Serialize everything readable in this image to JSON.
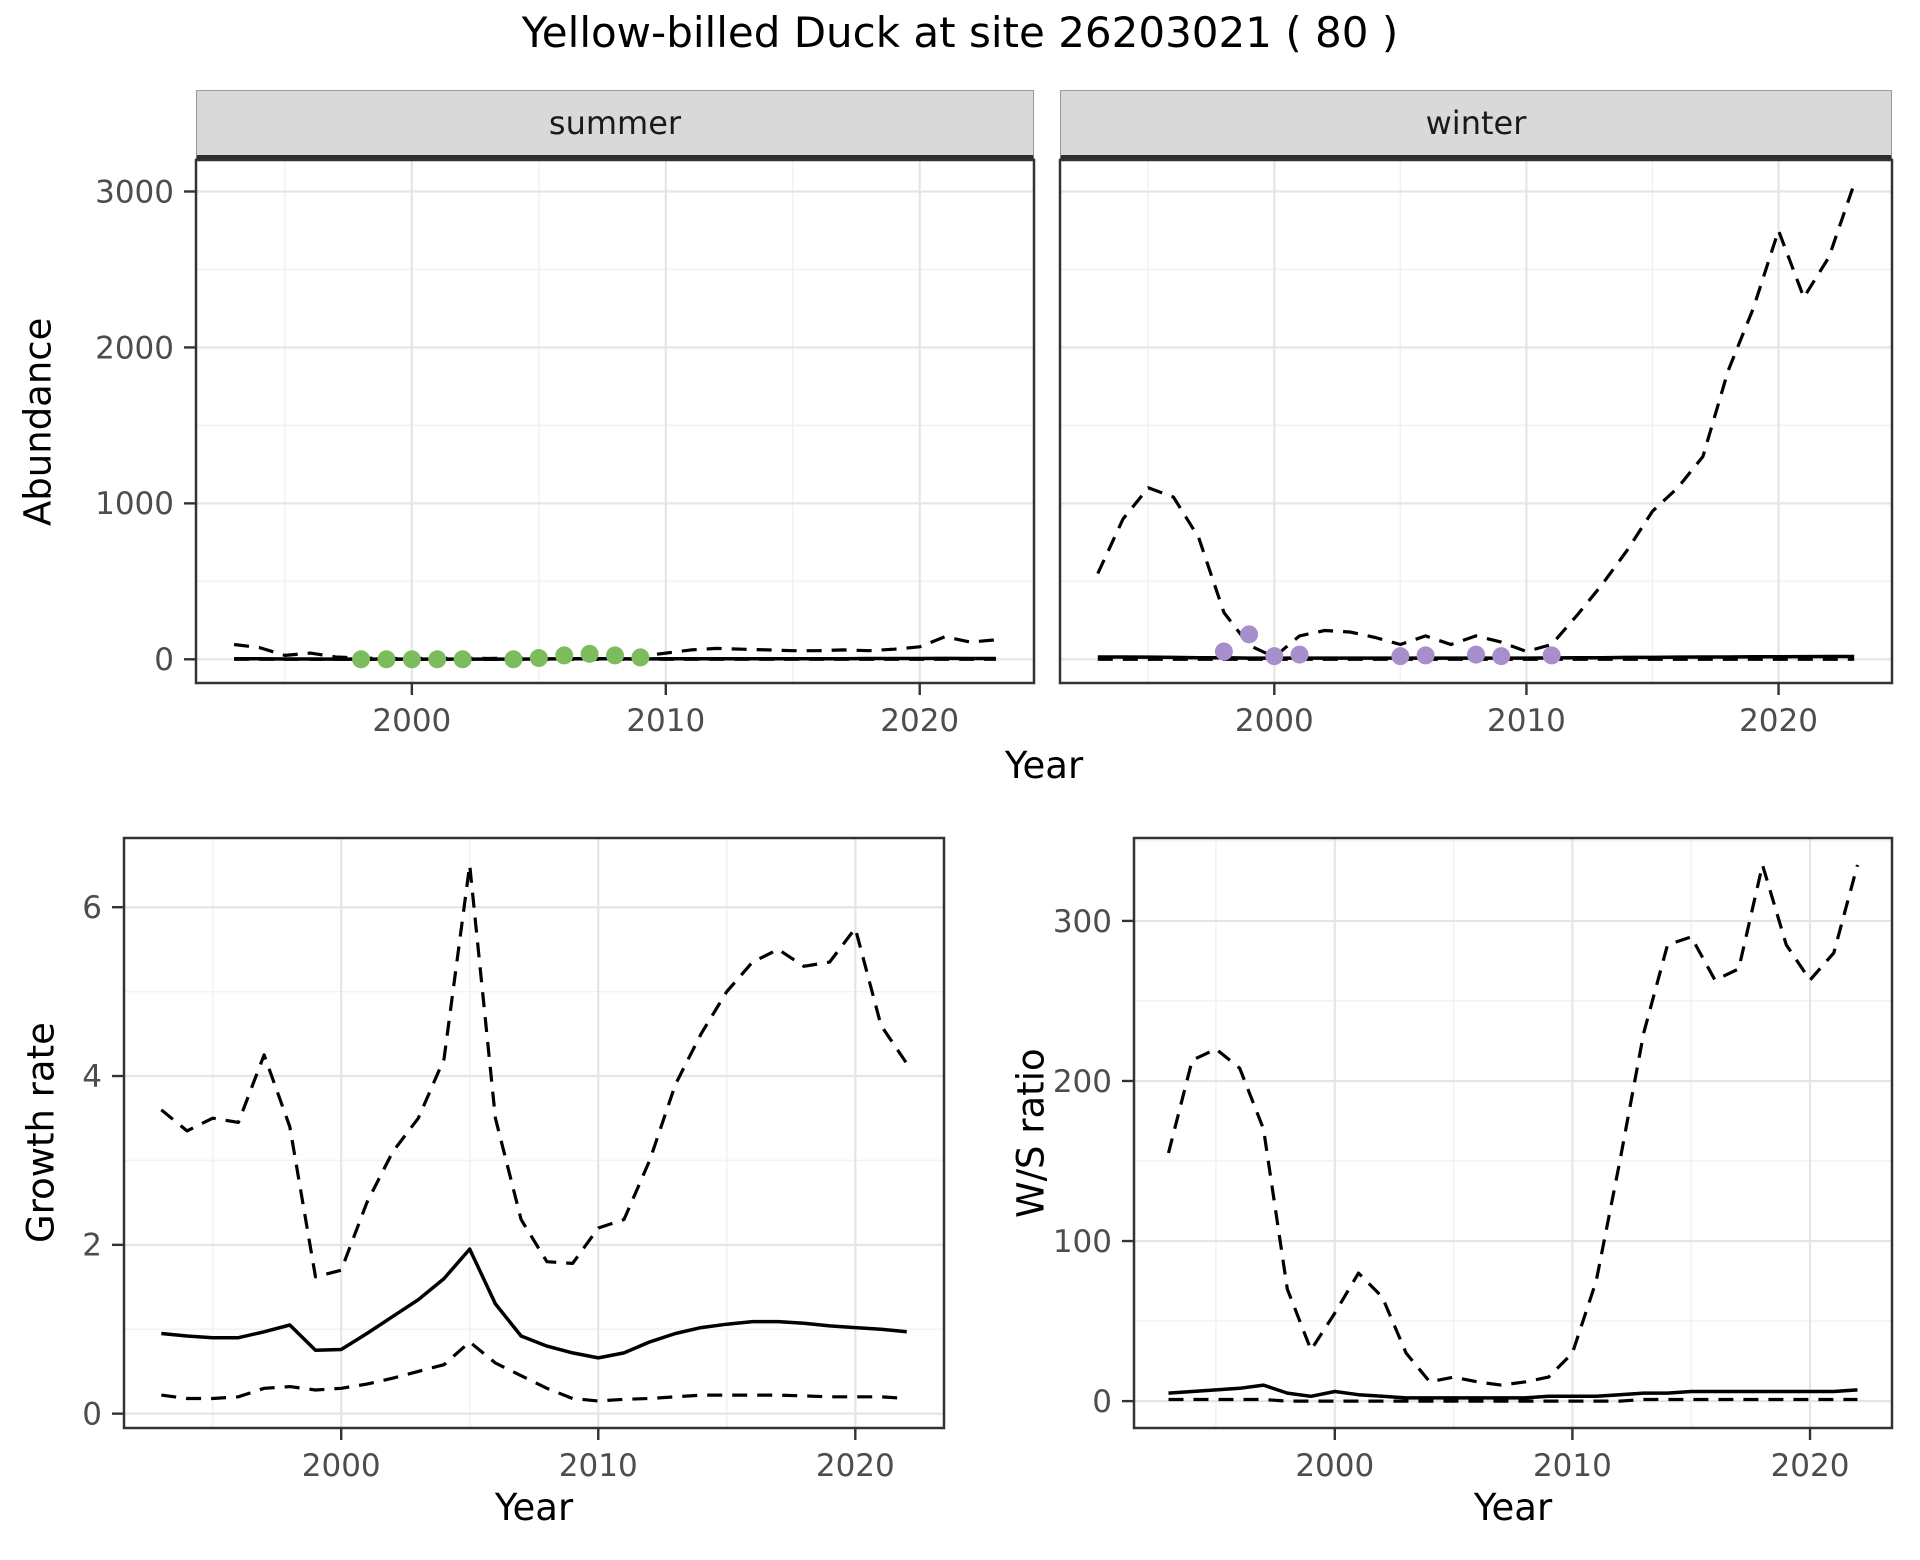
{
  "page_title": "Yellow-billed Duck at site 26203021 ( 80 )",
  "axis_labels": {
    "abundance": "Abundance",
    "year_top": "Year",
    "growth_rate": "Growth rate",
    "ws_ratio": "W/S ratio",
    "year_bottom_left": "Year",
    "year_bottom_right": "Year"
  },
  "colors": {
    "line": "#000000",
    "summer_points": "#7CBC5C",
    "winter_points": "#A78FCB",
    "strip_bg": "#D9D9D9",
    "grid_major": "#E5E5E5",
    "grid_minor": "#F2F2F2",
    "panel_border": "#333333",
    "tick_label": "#4D4D4D",
    "axis_title": "#000000"
  },
  "chart_data": [
    {
      "id": "abundance-summer",
      "type": "line",
      "facet_label": "summer",
      "xlabel": "Year",
      "ylabel": "Abundance",
      "xlim": [
        1991.5,
        2024.5
      ],
      "ylim": [
        -152,
        3202
      ],
      "xticks": [
        2000,
        2010,
        2020
      ],
      "yticks": [
        0,
        1000,
        2000,
        3000
      ],
      "show_y_tick_labels": true,
      "x": [
        1993,
        1994,
        1995,
        1996,
        1997,
        1998,
        1999,
        2000,
        2001,
        2002,
        2003,
        2004,
        2005,
        2006,
        2007,
        2008,
        2009,
        2010,
        2011,
        2012,
        2013,
        2014,
        2015,
        2016,
        2017,
        2018,
        2019,
        2020,
        2021,
        2022,
        2023
      ],
      "series": [
        {
          "name": "upper_ci",
          "style": "dashed",
          "y": [
            95,
            75,
            25,
            40,
            15,
            8,
            5,
            5,
            5,
            8,
            5,
            8,
            15,
            30,
            35,
            30,
            20,
            40,
            60,
            70,
            65,
            60,
            55,
            55,
            60,
            55,
            65,
            80,
            145,
            110,
            125
          ]
        },
        {
          "name": "median",
          "style": "solid",
          "y": [
            3,
            3,
            2,
            2,
            1,
            1,
            1,
            1,
            1,
            1,
            1,
            1,
            2,
            3,
            4,
            3,
            2,
            3,
            3,
            4,
            4,
            4,
            4,
            4,
            4,
            5,
            5,
            5,
            6,
            5,
            5
          ]
        },
        {
          "name": "lower_ci",
          "style": "dashed",
          "y": [
            0,
            0,
            0,
            0,
            0,
            0,
            0,
            0,
            0,
            0,
            0,
            0,
            0,
            0,
            0,
            0,
            0,
            0,
            0,
            0,
            0,
            0,
            0,
            0,
            0,
            0,
            0,
            0,
            0,
            0,
            0
          ]
        }
      ],
      "points": {
        "name": "observed-summer-counts",
        "color_key": "summer_points",
        "x": [
          1998,
          1999,
          2000,
          2001,
          2002,
          2004,
          2005,
          2006,
          2007,
          2008,
          2009
        ],
        "y": [
          0,
          0,
          0,
          0,
          0,
          0,
          8,
          25,
          35,
          25,
          12
        ]
      }
    },
    {
      "id": "abundance-winter",
      "type": "line",
      "facet_label": "winter",
      "xlabel": "Year",
      "ylabel": "Abundance",
      "xlim": [
        1991.5,
        2024.5
      ],
      "ylim": [
        -152,
        3202
      ],
      "xticks": [
        2000,
        2010,
        2020
      ],
      "yticks": [
        0,
        1000,
        2000,
        3000
      ],
      "show_y_tick_labels": false,
      "x": [
        1993,
        1994,
        1995,
        1996,
        1997,
        1998,
        1999,
        2000,
        2001,
        2002,
        2003,
        2004,
        2005,
        2006,
        2007,
        2008,
        2009,
        2010,
        2011,
        2012,
        2013,
        2014,
        2015,
        2016,
        2017,
        2018,
        2019,
        2020,
        2021,
        2022,
        2023
      ],
      "series": [
        {
          "name": "upper_ci",
          "style": "dashed",
          "y": [
            550,
            900,
            1100,
            1040,
            780,
            300,
            90,
            15,
            150,
            185,
            175,
            140,
            95,
            150,
            95,
            150,
            110,
            50,
            95,
            280,
            480,
            700,
            950,
            1100,
            1300,
            1850,
            2250,
            2750,
            2320,
            2580,
            3050
          ]
        },
        {
          "name": "median",
          "style": "solid",
          "y": [
            15,
            15,
            14,
            12,
            10,
            10,
            8,
            8,
            8,
            8,
            8,
            8,
            8,
            8,
            8,
            8,
            8,
            8,
            9,
            10,
            10,
            12,
            12,
            14,
            15,
            15,
            16,
            16,
            17,
            18,
            18
          ]
        },
        {
          "name": "lower_ci",
          "style": "dashed",
          "y": [
            0,
            0,
            0,
            0,
            0,
            0,
            0,
            0,
            0,
            0,
            0,
            0,
            0,
            0,
            0,
            0,
            0,
            0,
            0,
            0,
            0,
            0,
            0,
            0,
            0,
            0,
            0,
            0,
            0,
            0,
            0
          ]
        }
      ],
      "points": {
        "name": "observed-winter-counts",
        "color_key": "winter_points",
        "x": [
          1998,
          1999,
          2000,
          2001,
          2005,
          2006,
          2008,
          2009,
          2011
        ],
        "y": [
          50,
          160,
          20,
          30,
          20,
          25,
          30,
          20,
          25
        ]
      }
    },
    {
      "id": "growth-rate",
      "type": "line",
      "facet_label": "",
      "xlabel": "Year",
      "ylabel": "Growth rate",
      "xlim": [
        1991.55,
        2023.45
      ],
      "ylim": [
        -0.17,
        6.82
      ],
      "xticks": [
        2000,
        2010,
        2020
      ],
      "yticks": [
        0,
        2,
        4,
        6
      ],
      "show_y_tick_labels": true,
      "x": [
        1993,
        1994,
        1995,
        1996,
        1997,
        1998,
        1999,
        2000,
        2001,
        2002,
        2003,
        2004,
        2005,
        2006,
        2007,
        2008,
        2009,
        2010,
        2011,
        2012,
        2013,
        2014,
        2015,
        2016,
        2017,
        2018,
        2019,
        2020,
        2021,
        2022
      ],
      "series": [
        {
          "name": "upper_ci",
          "style": "dashed",
          "y": [
            3.6,
            3.35,
            3.5,
            3.45,
            4.25,
            3.4,
            1.62,
            1.7,
            2.5,
            3.1,
            3.5,
            4.2,
            6.5,
            3.5,
            2.3,
            1.8,
            1.78,
            2.2,
            2.3,
            3.0,
            3.9,
            4.5,
            5.0,
            5.35,
            5.5,
            5.3,
            5.35,
            5.75,
            4.6,
            4.15
          ]
        },
        {
          "name": "median",
          "style": "solid",
          "y": [
            0.95,
            0.92,
            0.9,
            0.9,
            0.97,
            1.05,
            0.75,
            0.76,
            0.95,
            1.15,
            1.35,
            1.6,
            1.95,
            1.3,
            0.92,
            0.8,
            0.72,
            0.66,
            0.72,
            0.85,
            0.95,
            1.02,
            1.06,
            1.09,
            1.09,
            1.07,
            1.04,
            1.02,
            1.0,
            0.97
          ]
        },
        {
          "name": "lower_ci",
          "style": "dashed",
          "y": [
            0.22,
            0.18,
            0.18,
            0.2,
            0.3,
            0.32,
            0.28,
            0.3,
            0.35,
            0.42,
            0.5,
            0.58,
            0.85,
            0.6,
            0.45,
            0.3,
            0.18,
            0.15,
            0.17,
            0.18,
            0.2,
            0.22,
            0.22,
            0.22,
            0.22,
            0.21,
            0.2,
            0.2,
            0.2,
            0.18
          ]
        }
      ]
    },
    {
      "id": "ws-ratio",
      "type": "line",
      "facet_label": "",
      "xlabel": "Year",
      "ylabel": "W/S ratio",
      "xlim": [
        1991.55,
        2023.45
      ],
      "ylim": [
        -16.8,
        351.8
      ],
      "xticks": [
        2000,
        2010,
        2020
      ],
      "yticks": [
        0,
        100,
        200,
        300
      ],
      "show_y_tick_labels": true,
      "x": [
        1993,
        1994,
        1995,
        1996,
        1997,
        1998,
        1999,
        2000,
        2001,
        2002,
        2003,
        2004,
        2005,
        2006,
        2007,
        2008,
        2009,
        2010,
        2011,
        2012,
        2013,
        2014,
        2015,
        2016,
        2017,
        2018,
        2019,
        2020,
        2021,
        2022
      ],
      "series": [
        {
          "name": "upper_ci",
          "style": "dashed",
          "y": [
            155,
            213,
            220,
            208,
            170,
            70,
            32,
            55,
            80,
            65,
            30,
            12,
            15,
            12,
            10,
            12,
            15,
            30,
            75,
            150,
            230,
            285,
            290,
            263,
            270,
            335,
            285,
            263,
            280,
            335
          ]
        },
        {
          "name": "median",
          "style": "solid",
          "y": [
            5,
            6,
            7,
            8,
            10,
            5,
            3,
            6,
            4,
            3,
            2,
            2,
            2,
            2,
            2,
            2,
            3,
            3,
            3,
            4,
            5,
            5,
            6,
            6,
            6,
            6,
            6,
            6,
            6,
            7
          ]
        },
        {
          "name": "lower_ci",
          "style": "dashed",
          "y": [
            1,
            1,
            1,
            1,
            1,
            0,
            0,
            0,
            0,
            0,
            0,
            0,
            0,
            0,
            0,
            0,
            0,
            0,
            0,
            0,
            1,
            1,
            1,
            1,
            1,
            1,
            1,
            1,
            1,
            1
          ]
        }
      ]
    }
  ]
}
